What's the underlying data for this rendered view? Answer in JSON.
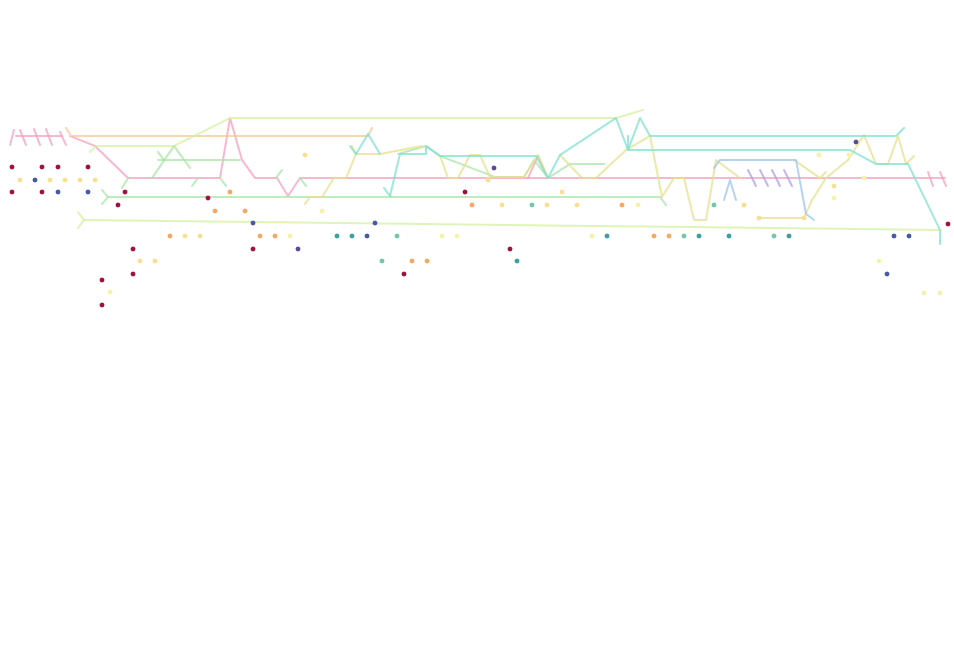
{
  "colors": {
    "pink": "#f4a0bf",
    "peach": "#f5c98f",
    "lime": "#d4f0a0",
    "green": "#a8e6a8",
    "teal": "#7fe0d0",
    "khaki": "#e6e08c",
    "blue": "#9cc4ec",
    "purple": "#b49ce0",
    "dot_red": "#a01040",
    "dot_orange": "#f5a860",
    "dot_yellow": "#f8e090",
    "dot_pale": "#f4f4a8",
    "dot_navy": "#4858a8",
    "dot_teal": "#3ca0a0",
    "dot_seagreen": "#70c8a8",
    "dot_purple": "#604898"
  }
}
